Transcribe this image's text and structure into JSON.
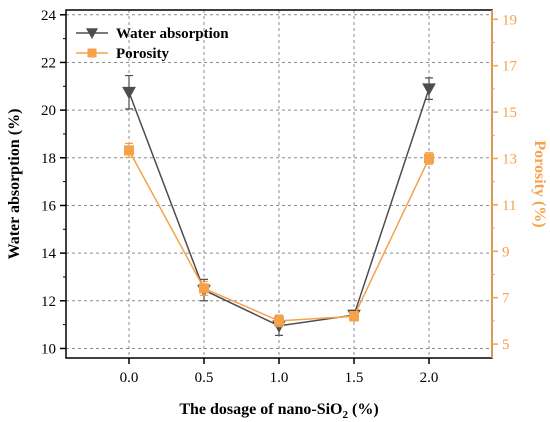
{
  "chart_data": {
    "type": "line",
    "x": [
      0.0,
      0.5,
      1.0,
      1.5,
      2.0
    ],
    "x_tick_labels": [
      "0.0",
      "0.5",
      "1.0",
      "1.5",
      "2.0"
    ],
    "xlim": [
      -0.42,
      2.42
    ],
    "xlabel": {
      "text": "The dosage of nano-SiO",
      "sub": "2",
      "suffix": " (%)"
    },
    "y_left": {
      "label": "Water absorption (%)",
      "lim": [
        9.6,
        24.2
      ],
      "ticks": [
        "10",
        "12",
        "14",
        "16",
        "18",
        "20",
        "22",
        "24"
      ]
    },
    "y_right": {
      "label": "Porosity (%)",
      "lim": [
        4.4,
        19.4
      ],
      "ticks": [
        "5",
        "7",
        "9",
        "11",
        "13",
        "15",
        "17",
        "19"
      ]
    },
    "grid": true,
    "legend_placement": "top-left",
    "series": [
      {
        "name": "Water absorption",
        "axis": "left",
        "marker": "triangle-down",
        "color": "#4d4d4d",
        "values": [
          20.75,
          12.45,
          10.95,
          11.4,
          20.9
        ],
        "errors": [
          0.7,
          0.45,
          0.4,
          0.2,
          0.45
        ]
      },
      {
        "name": "Porosity",
        "axis": "right",
        "marker": "square",
        "color": "#f5a24b",
        "values": [
          13.35,
          7.4,
          6.0,
          6.2,
          13.0
        ],
        "errors": [
          0.3,
          0.3,
          0.25,
          0.2,
          0.25
        ]
      }
    ],
    "colors": {
      "left_axis": "#000000",
      "right_axis": "#f5a24b",
      "grid": "#8c8c8c"
    }
  }
}
